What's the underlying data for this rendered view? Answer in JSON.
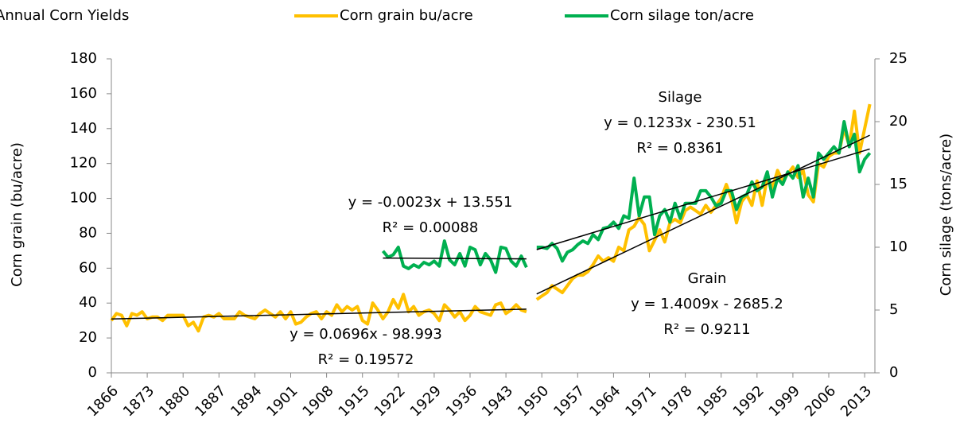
{
  "chart_data": {
    "type": "line",
    "title": "Annual Corn Yields",
    "y_label": "Corn grain (bu/acre)",
    "y2_label": "Corn silage (tons/acre)",
    "x": [
      1866,
      1867,
      1868,
      1869,
      1870,
      1871,
      1872,
      1873,
      1874,
      1875,
      1876,
      1877,
      1878,
      1879,
      1880,
      1881,
      1882,
      1883,
      1884,
      1885,
      1886,
      1887,
      1888,
      1889,
      1890,
      1891,
      1892,
      1893,
      1894,
      1895,
      1896,
      1897,
      1898,
      1899,
      1900,
      1901,
      1902,
      1903,
      1904,
      1905,
      1906,
      1907,
      1908,
      1909,
      1910,
      1911,
      1912,
      1913,
      1914,
      1915,
      1916,
      1917,
      1918,
      1919,
      1920,
      1921,
      1922,
      1923,
      1924,
      1925,
      1926,
      1927,
      1928,
      1929,
      1930,
      1931,
      1932,
      1933,
      1934,
      1935,
      1936,
      1937,
      1938,
      1939,
      1940,
      1941,
      1942,
      1943,
      1944,
      1945,
      1946,
      1947,
      1948,
      1949,
      1950,
      1951,
      1952,
      1953,
      1954,
      1955,
      1956,
      1957,
      1958,
      1959,
      1960,
      1961,
      1962,
      1963,
      1964,
      1965,
      1966,
      1967,
      1968,
      1969,
      1970,
      1971,
      1972,
      1973,
      1974,
      1975,
      1976,
      1977,
      1978,
      1979,
      1980,
      1981,
      1982,
      1983,
      1984,
      1985,
      1986,
      1987,
      1988,
      1989,
      1990,
      1991,
      1992,
      1993,
      1994,
      1995,
      1996,
      1997,
      1998,
      1999,
      2000,
      2001,
      2002,
      2003,
      2004,
      2005,
      2006,
      2007,
      2008,
      2009,
      2010,
      2011,
      2012,
      2013,
      2014
    ],
    "series": [
      {
        "name": "Corn grain bu/acre",
        "color": "#FFC000",
        "axis": "y",
        "values": [
          30,
          34,
          33,
          27,
          34,
          33,
          35,
          31,
          32,
          32,
          30,
          33,
          33,
          33,
          33,
          27,
          29,
          24,
          32,
          33,
          32,
          34,
          31,
          31,
          31,
          35,
          33,
          32,
          31,
          34,
          36,
          34,
          32,
          35,
          31,
          35,
          28,
          29,
          32,
          34,
          35,
          31,
          35,
          33,
          39,
          35,
          38,
          36,
          38,
          30,
          28,
          40,
          36,
          31,
          35,
          42,
          37,
          45,
          35,
          38,
          33,
          35,
          36,
          34,
          30,
          39,
          36,
          32,
          35,
          30,
          33,
          38,
          35,
          34,
          33,
          39,
          40,
          34,
          36,
          39,
          36,
          35,
          null,
          42,
          44,
          46,
          50,
          48,
          46,
          50,
          54,
          56,
          56,
          58,
          62,
          67,
          64,
          66,
          64,
          72,
          70,
          82,
          84,
          89,
          85,
          70,
          76,
          82,
          75,
          86,
          88,
          86,
          93,
          95,
          93,
          91,
          96,
          92,
          96,
          100,
          108,
          100,
          86,
          98,
          102,
          96,
          110,
          96,
          112,
          106,
          116,
          110,
          114,
          118,
          112,
          116,
          102,
          98,
          120,
          118,
          124,
          126,
          126,
          140,
          130,
          150,
          126,
          140,
          154
        ]
      },
      {
        "name": "Corn silage ton/acre",
        "color": "#00B050",
        "axis": "y2",
        "values": [
          null,
          null,
          null,
          null,
          null,
          null,
          null,
          null,
          null,
          null,
          null,
          null,
          null,
          null,
          null,
          null,
          null,
          null,
          null,
          null,
          null,
          null,
          null,
          null,
          null,
          null,
          null,
          null,
          null,
          null,
          null,
          null,
          null,
          null,
          null,
          null,
          null,
          null,
          null,
          null,
          null,
          null,
          null,
          null,
          null,
          null,
          null,
          null,
          null,
          null,
          null,
          null,
          null,
          9.7,
          9.2,
          9.4,
          10.0,
          8.5,
          8.3,
          8.6,
          8.4,
          8.8,
          8.6,
          8.9,
          8.5,
          10.5,
          9.0,
          8.6,
          9.5,
          8.5,
          10.0,
          9.8,
          8.6,
          9.5,
          9.0,
          8.0,
          10.0,
          9.9,
          8.9,
          8.5,
          9.3,
          8.4,
          null,
          10.0,
          10.0,
          9.9,
          10.3,
          9.9,
          8.9,
          9.6,
          9.8,
          10.2,
          10.5,
          10.3,
          11.0,
          10.6,
          11.5,
          11.6,
          12.0,
          11.5,
          12.5,
          12.3,
          15.5,
          12.5,
          14.0,
          14.0,
          11.0,
          12.5,
          13.0,
          12.0,
          13.5,
          12.3,
          13.5,
          13.5,
          13.5,
          14.5,
          14.5,
          14.0,
          13.3,
          13.5,
          14.5,
          14.5,
          13.0,
          14.0,
          14.2,
          15.2,
          14.5,
          14.8,
          16.0,
          14.0,
          15.5,
          15.0,
          16.0,
          15.5,
          16.5,
          14.0,
          15.5,
          14.0,
          17.5,
          17.0,
          17.5,
          18.0,
          17.5,
          20.0,
          18.0,
          19.0,
          16.0,
          17.0,
          17.5
        ]
      }
    ],
    "trendlines": [
      {
        "axis": "y",
        "x": [
          1866,
          1947
        ],
        "values": [
          30.88,
          36.52
        ],
        "equation": "y = 0.0696x - 98.993",
        "r2": "R² = 0.19572"
      },
      {
        "axis": "y2",
        "x": [
          1919,
          1947
        ],
        "values": [
          9.137,
          9.073
        ],
        "equation": "y = -0.0023x + 13.551",
        "r2": "R² = 0.00088"
      },
      {
        "axis": "y2",
        "x": [
          1949,
          2014
        ],
        "values": [
          9.81,
          17.82
        ],
        "name": "Silage",
        "equation": "y = 0.1233x - 230.51",
        "r2": "R² = 0.8361"
      },
      {
        "axis": "y",
        "x": [
          1949,
          2014
        ],
        "values": [
          45.2,
          136.2
        ],
        "name": "Grain",
        "equation": "y = 1.4009x - 2685.2",
        "r2": "R² = 0.9211"
      }
    ],
    "trendline_color": "#000000",
    "xlim": [
      1866,
      2015
    ],
    "xticks": [
      1866,
      1873,
      1880,
      1887,
      1894,
      1901,
      1908,
      1915,
      1922,
      1929,
      1936,
      1943,
      1950,
      1957,
      1964,
      1971,
      1978,
      1985,
      1992,
      1999,
      2006,
      2013
    ],
    "ylim": [
      0,
      180
    ],
    "yticks": [
      0,
      20,
      40,
      60,
      80,
      100,
      120,
      140,
      160,
      180
    ],
    "y2lim": [
      0,
      25
    ],
    "y2ticks": [
      0,
      5,
      10,
      15,
      20,
      25
    ],
    "legend": "top"
  }
}
